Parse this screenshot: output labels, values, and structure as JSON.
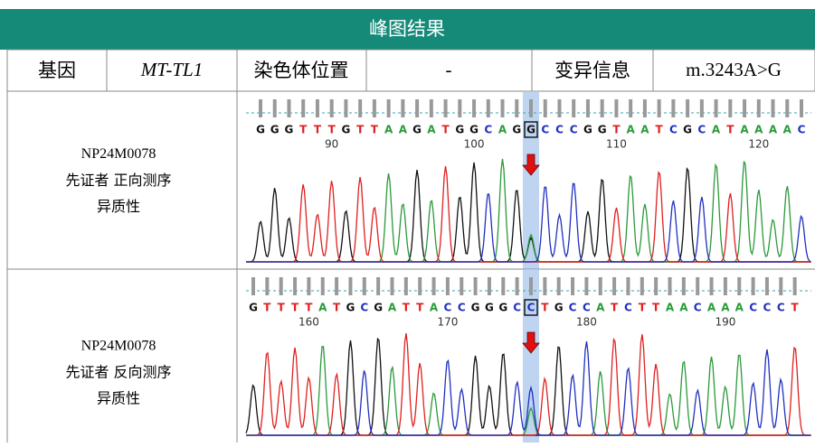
{
  "header": {
    "title": "峰图结果"
  },
  "table": {
    "header_row": [
      "基因",
      "MT-TL1",
      "染色体位置",
      "-",
      "变异信息",
      "m.3243A>G"
    ],
    "rows": [
      {
        "sample": "NP24M0078",
        "description": "先证者 正向测序",
        "status": "异质性",
        "bases": [
          "G",
          "G",
          "G",
          "T",
          "T",
          "T",
          "G",
          "T",
          "T",
          "A",
          "A",
          "G",
          "A",
          "T",
          "G",
          "G",
          "C",
          "A",
          "G",
          "G",
          "C",
          "C",
          "C",
          "G",
          "G",
          "T",
          "A",
          "A",
          "T",
          "C",
          "G",
          "C",
          "A",
          "T",
          "A",
          "A",
          "A",
          "A",
          "C"
        ],
        "positions": [
          90,
          100,
          110,
          120
        ]
      },
      {
        "sample": "NP24M0078",
        "description": "先证者 反向测序",
        "status": "异质性",
        "bases": [
          "G",
          "T",
          "T",
          "T",
          "T",
          "A",
          "T",
          "G",
          "C",
          "G",
          "A",
          "T",
          "T",
          "A",
          "C",
          "C",
          "G",
          "G",
          "G",
          "C",
          "C",
          "T",
          "G",
          "C",
          "C",
          "A",
          "T",
          "C",
          "T",
          "T",
          "A",
          "A",
          "C",
          "A",
          "A",
          "A",
          "C",
          "C",
          "C",
          "T"
        ],
        "positions": [
          160,
          170,
          180,
          190
        ]
      }
    ]
  }
}
